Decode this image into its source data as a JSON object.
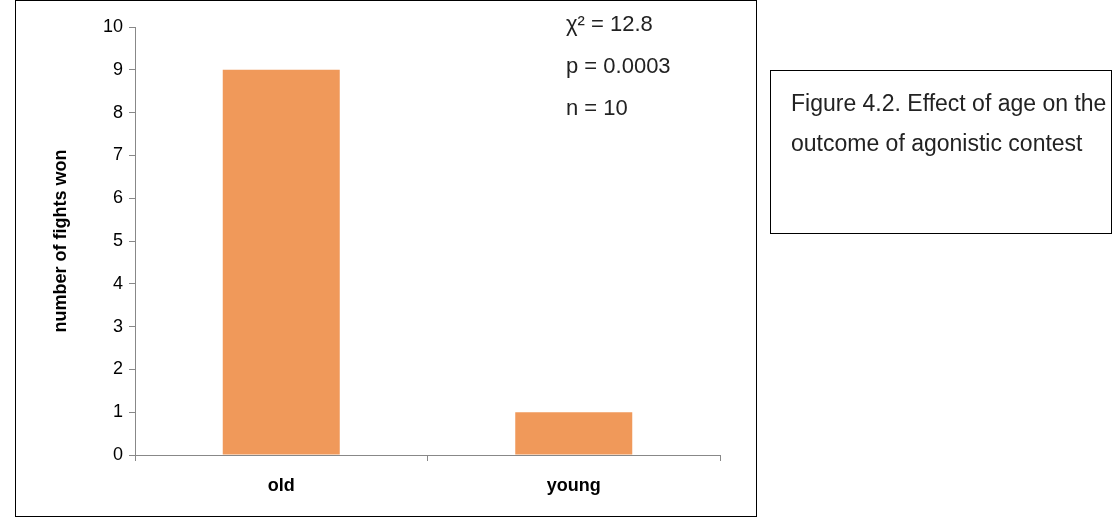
{
  "chart_data": {
    "type": "bar",
    "ylabel": "number of fights won",
    "categories": [
      "old",
      "young"
    ],
    "values": [
      9,
      1
    ],
    "color": "#f0995a",
    "ylim": [
      0,
      10
    ],
    "yticks": [
      0,
      1,
      2,
      3,
      4,
      5,
      6,
      7,
      8,
      9,
      10
    ],
    "grid": false,
    "legend": false,
    "annotations": [
      "χ² = 12.8",
      "p = 0.0003",
      "n = 10",
      "Figure 4.2. Effect of age on the outcome of agonistic contest"
    ]
  }
}
